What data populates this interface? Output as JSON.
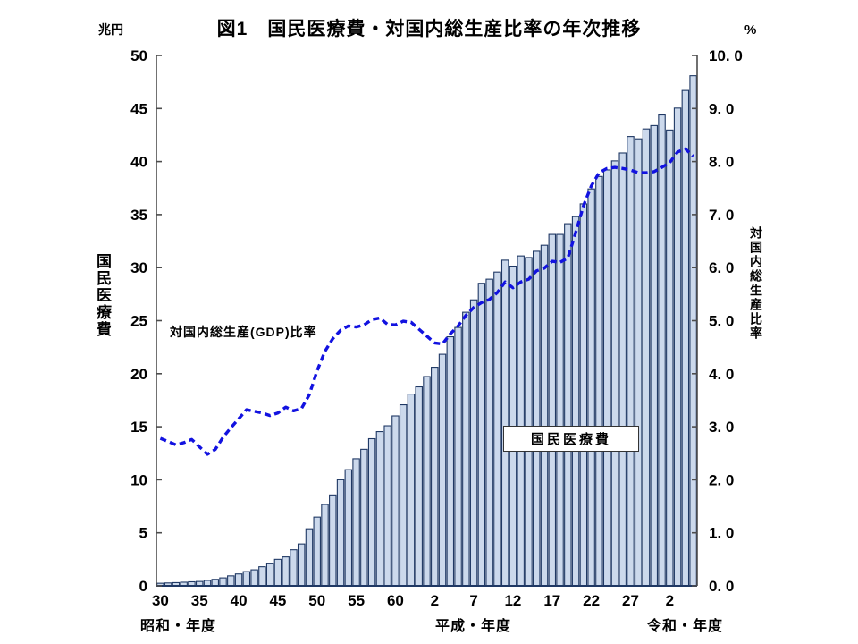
{
  "page": {
    "title": "図1　国民医療費・対国内総生産比率の年次推移"
  },
  "left_axis": {
    "unit": "兆円",
    "title": "国民医療費",
    "ticks": [
      "0",
      "5",
      "10",
      "15",
      "20",
      "25",
      "30",
      "35",
      "40",
      "45",
      "50"
    ],
    "range": [
      0,
      50
    ]
  },
  "right_axis": {
    "unit": "%",
    "title": "対国内総生産比率",
    "ticks": [
      "0. 0",
      "1. 0",
      "2. 0",
      "3. 0",
      "4. 0",
      "5. 0",
      "6. 0",
      "7. 0",
      "8. 0",
      "9. 0",
      "10. 0"
    ],
    "range": [
      0,
      10
    ]
  },
  "x_axis": {
    "ticks": [
      {
        "year": 1955,
        "label": "30"
      },
      {
        "year": 1960,
        "label": "35"
      },
      {
        "year": 1965,
        "label": "40"
      },
      {
        "year": 1970,
        "label": "45"
      },
      {
        "year": 1975,
        "label": "50"
      },
      {
        "year": 1980,
        "label": "55"
      },
      {
        "year": 1985,
        "label": "60"
      },
      {
        "year": 1990,
        "label": "2"
      },
      {
        "year": 1995,
        "label": "7"
      },
      {
        "year": 2000,
        "label": "12"
      },
      {
        "year": 2005,
        "label": "17"
      },
      {
        "year": 2010,
        "label": "22"
      },
      {
        "year": 2015,
        "label": "27"
      },
      {
        "year": 2020,
        "label": "2"
      }
    ],
    "era_labels": {
      "showa": "昭和・年度",
      "heisei": "平成・年度",
      "reiwa": "令和・年度"
    }
  },
  "annotations": {
    "line_label": "対国内総生産(GDP)比率",
    "bar_label": "国民医療費"
  },
  "colors": {
    "bar_fill": "#ccd9ec",
    "bar_stroke": "#1f3864",
    "line": "#1212e0",
    "axis": "#4d4d4d",
    "baseline": "#1f3864"
  },
  "chart_data": {
    "type": "combo",
    "title": "図1　国民医療費・対国内総生産比率の年次推移",
    "x_start_year": 1955,
    "x_end_year": 2023,
    "years": [
      1955,
      1956,
      1957,
      1958,
      1959,
      1960,
      1961,
      1962,
      1963,
      1964,
      1965,
      1966,
      1967,
      1968,
      1969,
      1970,
      1971,
      1972,
      1973,
      1974,
      1975,
      1976,
      1977,
      1978,
      1979,
      1980,
      1981,
      1982,
      1983,
      1984,
      1985,
      1986,
      1987,
      1988,
      1989,
      1990,
      1991,
      1992,
      1993,
      1994,
      1995,
      1996,
      1997,
      1998,
      1999,
      2000,
      2001,
      2002,
      2003,
      2004,
      2005,
      2006,
      2007,
      2008,
      2009,
      2010,
      2011,
      2012,
      2013,
      2014,
      2015,
      2016,
      2017,
      2018,
      2019,
      2020,
      2021,
      2022,
      2023
    ],
    "series": [
      {
        "name": "国民医療費",
        "type": "bar",
        "axis": "left",
        "unit": "兆円",
        "values": [
          0.24,
          0.27,
          0.3,
          0.34,
          0.38,
          0.41,
          0.51,
          0.61,
          0.75,
          0.94,
          1.12,
          1.34,
          1.51,
          1.8,
          2.08,
          2.5,
          2.73,
          3.4,
          3.95,
          5.38,
          6.48,
          7.67,
          8.57,
          10.0,
          10.95,
          11.98,
          12.87,
          13.87,
          14.54,
          15.09,
          16.02,
          17.07,
          18.08,
          18.76,
          19.73,
          20.61,
          21.83,
          23.48,
          24.36,
          25.79,
          26.96,
          28.52,
          28.91,
          29.58,
          30.7,
          30.14,
          31.1,
          30.95,
          31.54,
          32.11,
          33.13,
          33.13,
          34.14,
          34.81,
          36.01,
          37.42,
          38.59,
          39.21,
          40.06,
          40.81,
          42.36,
          42.14,
          43.07,
          43.39,
          44.39,
          42.97,
          45.04,
          46.7,
          48.09
        ]
      },
      {
        "name": "対国内総生産(GDP)比率",
        "type": "line",
        "style": "dashed",
        "axis": "right",
        "unit": "%",
        "values": [
          2.78,
          2.72,
          2.66,
          2.7,
          2.76,
          2.62,
          2.48,
          2.57,
          2.8,
          2.98,
          3.15,
          3.32,
          3.29,
          3.26,
          3.21,
          3.26,
          3.37,
          3.3,
          3.34,
          3.6,
          4.05,
          4.42,
          4.66,
          4.82,
          4.9,
          4.88,
          4.92,
          5.02,
          5.05,
          4.93,
          4.92,
          4.99,
          4.97,
          4.84,
          4.71,
          4.58,
          4.56,
          4.75,
          4.9,
          5.1,
          5.25,
          5.34,
          5.4,
          5.53,
          5.73,
          5.62,
          5.73,
          5.78,
          5.94,
          5.99,
          6.12,
          6.1,
          6.18,
          6.66,
          7.17,
          7.54,
          7.79,
          7.87,
          7.89,
          7.87,
          7.84,
          7.79,
          7.79,
          7.81,
          7.89,
          7.98,
          8.18,
          8.24,
          8.1
        ]
      }
    ],
    "left_ylim": [
      0,
      50
    ],
    "right_ylim": [
      0,
      10
    ],
    "grid": false,
    "legend_position": "inside-annotations"
  }
}
